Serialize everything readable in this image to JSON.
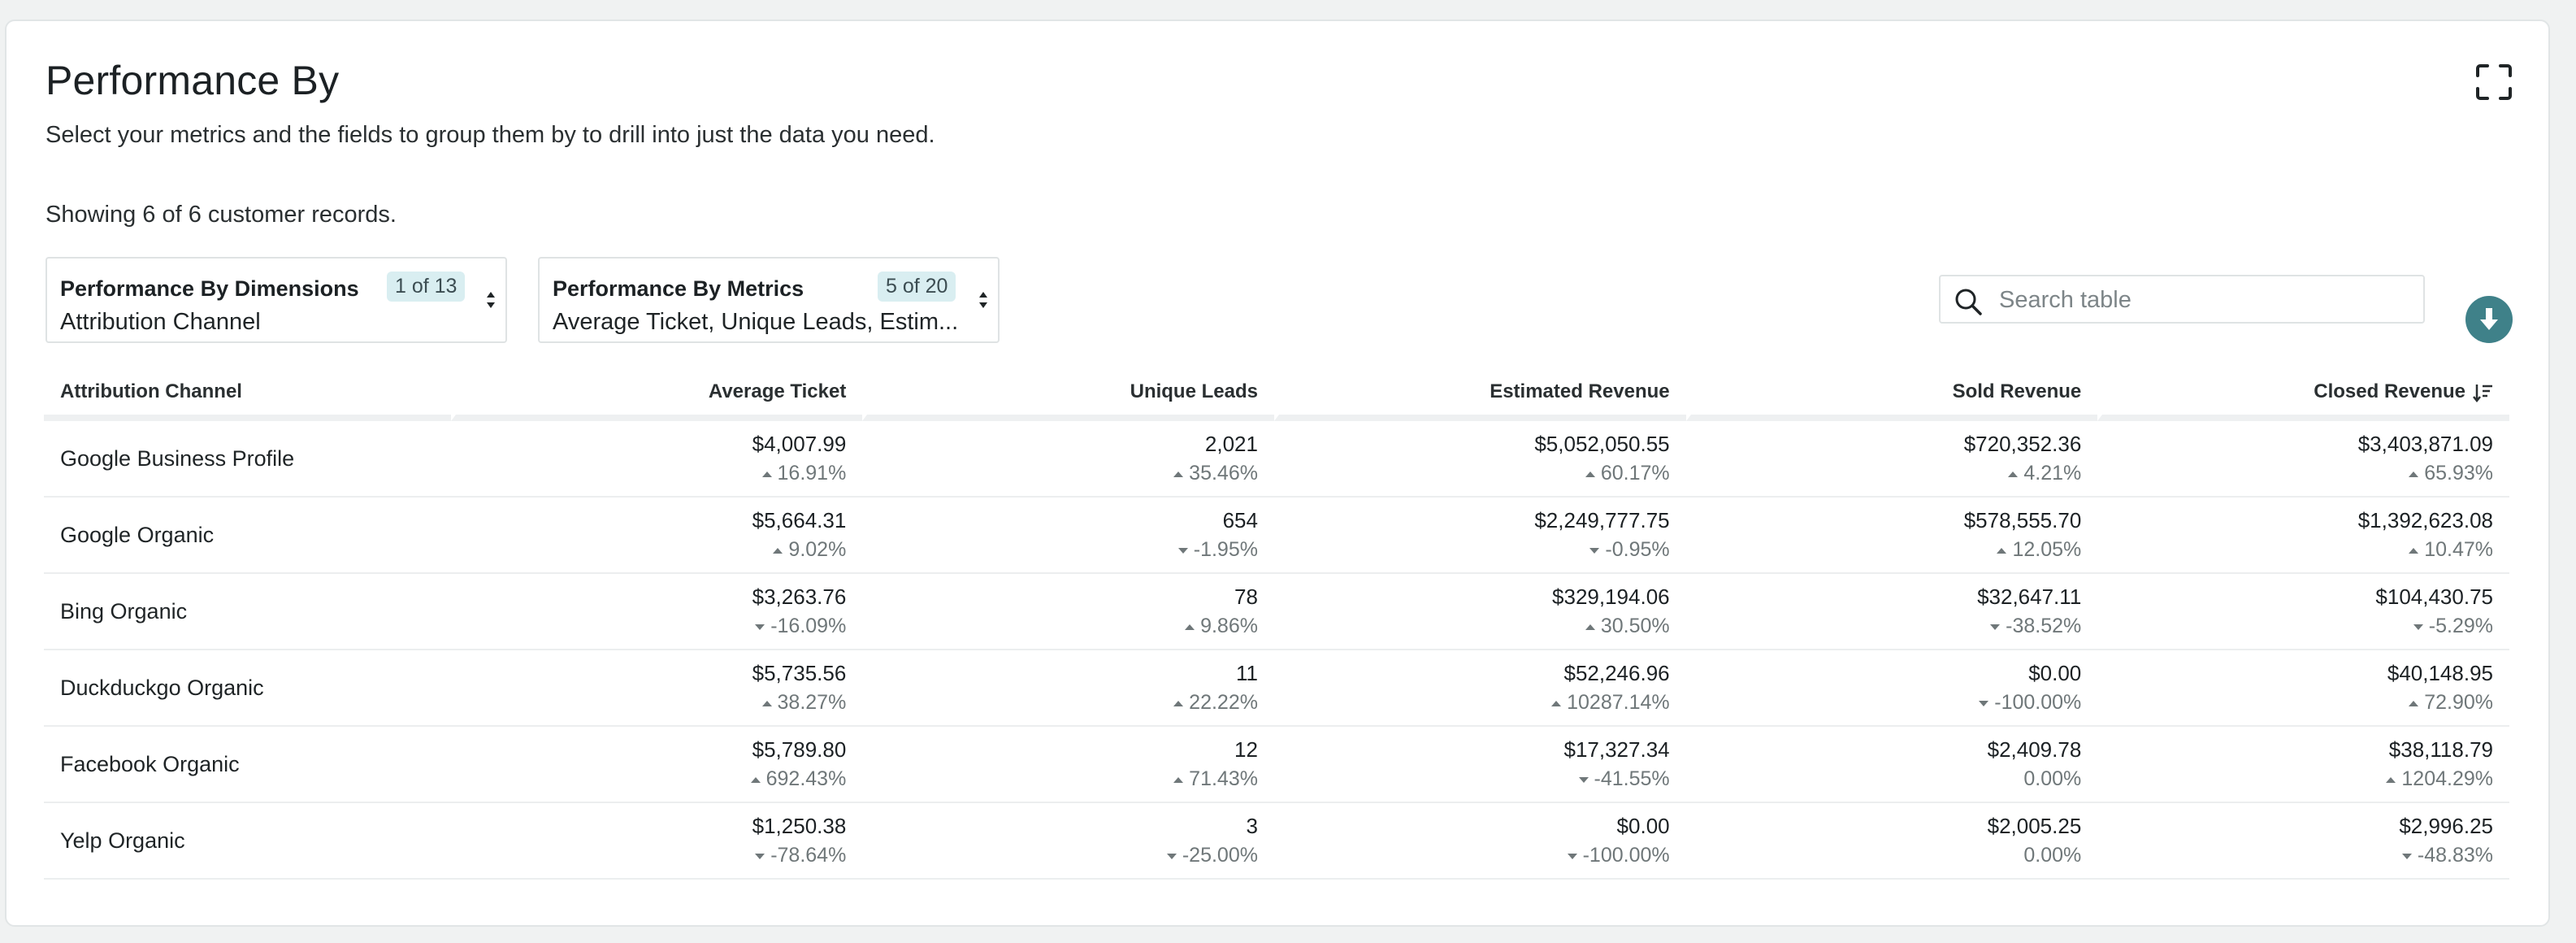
{
  "header": {
    "title": "Performance By",
    "subtitle": "Select your metrics and the fields to group them by to drill into just the data you need.",
    "fullscreen_icon": "expand-icon"
  },
  "records_text": "Showing 6 of 6 customer records.",
  "dimensions_picker": {
    "label": "Performance By Dimensions",
    "count": "1 of 13",
    "value": "Attribution Channel"
  },
  "metrics_picker": {
    "label": "Performance By Metrics",
    "count": "5 of 20",
    "value": "Average Ticket, Unique Leads, Estim..."
  },
  "search": {
    "placeholder": "Search table"
  },
  "download_icon": "download-icon",
  "colors": {
    "accent": "#3f8189",
    "badge_bg": "#d9eef1",
    "muted": "#6f7779"
  },
  "table": {
    "columns": [
      "Attribution Channel",
      "Average Ticket",
      "Unique Leads",
      "Estimated Revenue",
      "Sold Revenue",
      "Closed Revenue"
    ],
    "sorted_column": "Closed Revenue",
    "rows": [
      {
        "name": "Google Business Profile",
        "cells": [
          {
            "value": "$4,007.99",
            "change": "16.91%",
            "dir": "up"
          },
          {
            "value": "2,021",
            "change": "35.46%",
            "dir": "up"
          },
          {
            "value": "$5,052,050.55",
            "change": "60.17%",
            "dir": "up"
          },
          {
            "value": "$720,352.36",
            "change": "4.21%",
            "dir": "up"
          },
          {
            "value": "$3,403,871.09",
            "change": "65.93%",
            "dir": "up"
          }
        ]
      },
      {
        "name": "Google Organic",
        "cells": [
          {
            "value": "$5,664.31",
            "change": "9.02%",
            "dir": "up"
          },
          {
            "value": "654",
            "change": "-1.95%",
            "dir": "down"
          },
          {
            "value": "$2,249,777.75",
            "change": "-0.95%",
            "dir": "down"
          },
          {
            "value": "$578,555.70",
            "change": "12.05%",
            "dir": "up"
          },
          {
            "value": "$1,392,623.08",
            "change": "10.47%",
            "dir": "up"
          }
        ]
      },
      {
        "name": "Bing Organic",
        "cells": [
          {
            "value": "$3,263.76",
            "change": "-16.09%",
            "dir": "down"
          },
          {
            "value": "78",
            "change": "9.86%",
            "dir": "up"
          },
          {
            "value": "$329,194.06",
            "change": "30.50%",
            "dir": "up"
          },
          {
            "value": "$32,647.11",
            "change": "-38.52%",
            "dir": "down"
          },
          {
            "value": "$104,430.75",
            "change": "-5.29%",
            "dir": "down"
          }
        ]
      },
      {
        "name": "Duckduckgo Organic",
        "cells": [
          {
            "value": "$5,735.56",
            "change": "38.27%",
            "dir": "up"
          },
          {
            "value": "11",
            "change": "22.22%",
            "dir": "up"
          },
          {
            "value": "$52,246.96",
            "change": "10287.14%",
            "dir": "up"
          },
          {
            "value": "$0.00",
            "change": "-100.00%",
            "dir": "down"
          },
          {
            "value": "$40,148.95",
            "change": "72.90%",
            "dir": "up"
          }
        ]
      },
      {
        "name": "Facebook Organic",
        "cells": [
          {
            "value": "$5,789.80",
            "change": "692.43%",
            "dir": "up"
          },
          {
            "value": "12",
            "change": "71.43%",
            "dir": "up"
          },
          {
            "value": "$17,327.34",
            "change": "-41.55%",
            "dir": "down"
          },
          {
            "value": "$2,409.78",
            "change": "0.00%",
            "dir": "none"
          },
          {
            "value": "$38,118.79",
            "change": "1204.29%",
            "dir": "up"
          }
        ]
      },
      {
        "name": "Yelp Organic",
        "cells": [
          {
            "value": "$1,250.38",
            "change": "-78.64%",
            "dir": "down"
          },
          {
            "value": "3",
            "change": "-25.00%",
            "dir": "down"
          },
          {
            "value": "$0.00",
            "change": "-100.00%",
            "dir": "down"
          },
          {
            "value": "$2,005.25",
            "change": "0.00%",
            "dir": "none"
          },
          {
            "value": "$2,996.25",
            "change": "-48.83%",
            "dir": "down"
          }
        ]
      }
    ]
  }
}
